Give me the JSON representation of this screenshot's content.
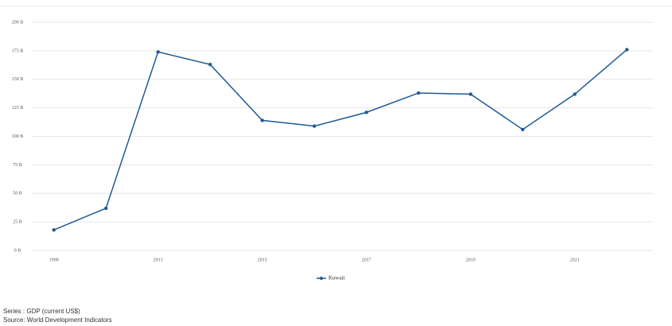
{
  "chart_data": {
    "type": "line",
    "categories": [
      "1990",
      null,
      "2013",
      null,
      "2015",
      null,
      "2017",
      null,
      "2019",
      null,
      "2021",
      null
    ],
    "series": [
      {
        "name": "Kuwait",
        "color": "#1f5a96",
        "values": [
          18,
          37,
          174,
          163,
          114,
          109,
          121,
          138,
          137,
          106,
          137,
          176
        ]
      }
    ],
    "ylim": [
      0,
      200
    ],
    "yticks": [
      {
        "value": 0,
        "label": "0 B"
      },
      {
        "value": 25,
        "label": "25 B"
      },
      {
        "value": 50,
        "label": "50 B"
      },
      {
        "value": 75,
        "label": "75 B"
      },
      {
        "value": 100,
        "label": "100 B"
      },
      {
        "value": 125,
        "label": "125 B"
      },
      {
        "value": 150,
        "label": "150 B"
      },
      {
        "value": 175,
        "label": "175 B"
      },
      {
        "value": 200,
        "label": "200 B"
      }
    ],
    "grid": true,
    "legend": "bottom"
  },
  "footer": {
    "series": "Series : GDP (current US$)",
    "source": "Source: World Development Indicators"
  }
}
